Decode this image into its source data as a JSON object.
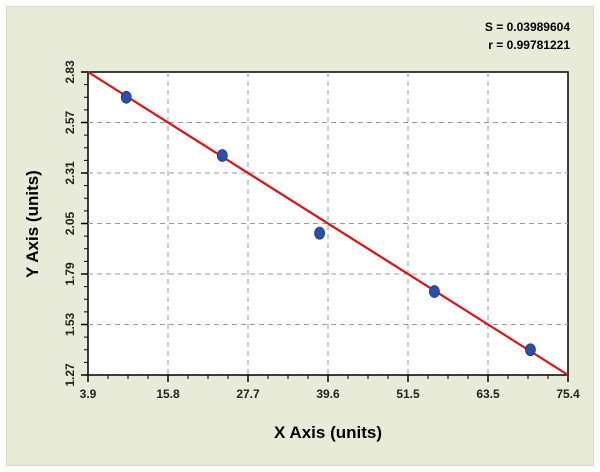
{
  "chart_data": {
    "type": "scatter",
    "stats": {
      "s_label": "S = 0.03989604",
      "r_label": "r = 0.99781221"
    },
    "xlabel": "X Axis (units)",
    "ylabel": "Y Axis (units)",
    "xlim": [
      3.9,
      75.4
    ],
    "ylim": [
      1.27,
      2.83
    ],
    "x_ticks": [
      "3.9",
      "15.8",
      "27.7",
      "39.6",
      "51.5",
      "63.5",
      "75.4"
    ],
    "y_ticks": [
      "1.27",
      "1.53",
      "1.79",
      "2.05",
      "2.31",
      "2.57",
      "2.83"
    ],
    "grid": true,
    "series": [
      {
        "points": [
          {
            "x": 9.6,
            "y": 2.7
          },
          {
            "x": 23.9,
            "y": 2.4
          },
          {
            "x": 38.4,
            "y": 2.0
          },
          {
            "x": 55.5,
            "y": 1.7
          },
          {
            "x": 69.8,
            "y": 1.4
          }
        ],
        "color": "#2a4fa8"
      }
    ],
    "fit_line": {
      "x": [
        3.9,
        75.4
      ],
      "y": [
        2.83,
        1.27
      ],
      "color": "#e01010"
    }
  }
}
